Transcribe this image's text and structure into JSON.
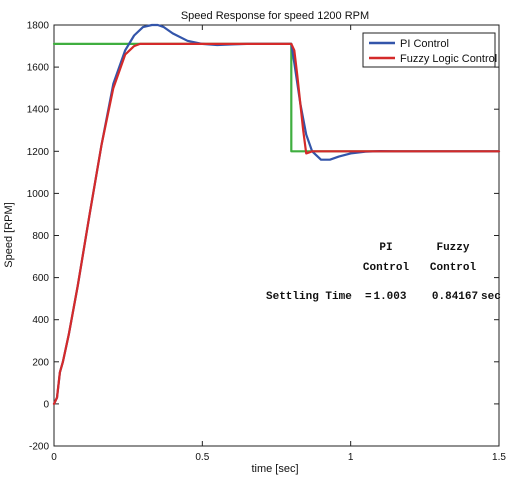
{
  "chart_data": {
    "type": "line",
    "title": "Speed Response for speed 1200 RPM",
    "xlabel": "time [sec]",
    "ylabel": "Speed [RPM]",
    "xlim": [
      0,
      1.5
    ],
    "ylim": [
      -200,
      1800
    ],
    "x_ticks": [
      0,
      0.5,
      1,
      1.5
    ],
    "x_tick_labels": [
      "0",
      "0.5",
      "1",
      "1.5"
    ],
    "y_ticks": [
      -200,
      0,
      200,
      400,
      600,
      800,
      1000,
      1200,
      1400,
      1600,
      1800
    ],
    "y_tick_labels": [
      "-200",
      "0",
      "200",
      "400",
      "600",
      "800",
      "1000",
      "1200",
      "1400",
      "1600",
      "1800"
    ],
    "grid": false,
    "legend_position": "top-right",
    "series": [
      {
        "name": "PI Control",
        "color": "#3355aa",
        "x": [
          0,
          0.01,
          0.02,
          0.03,
          0.05,
          0.08,
          0.12,
          0.16,
          0.2,
          0.24,
          0.27,
          0.3,
          0.33,
          0.35,
          0.37,
          0.4,
          0.45,
          0.5,
          0.55,
          0.6,
          0.65,
          0.7,
          0.75,
          0.8,
          0.81,
          0.83,
          0.85,
          0.87,
          0.9,
          0.93,
          0.96,
          1.0,
          1.05,
          1.1,
          1.15,
          1.2,
          1.3,
          1.4,
          1.5
        ],
        "y": [
          0,
          30,
          150,
          200,
          330,
          560,
          900,
          1230,
          1520,
          1680,
          1750,
          1790,
          1800,
          1800,
          1790,
          1760,
          1725,
          1710,
          1705,
          1708,
          1710,
          1710,
          1710,
          1710,
          1620,
          1430,
          1280,
          1200,
          1160,
          1160,
          1175,
          1190,
          1198,
          1201,
          1200,
          1200,
          1200,
          1200,
          1200
        ]
      },
      {
        "name": "Fuzzy Logic Control",
        "color": "#d42a2a",
        "x": [
          0,
          0.01,
          0.02,
          0.03,
          0.05,
          0.08,
          0.12,
          0.16,
          0.2,
          0.24,
          0.27,
          0.29,
          0.31,
          0.35,
          0.4,
          0.5,
          0.6,
          0.7,
          0.8,
          0.81,
          0.82,
          0.84,
          0.85,
          0.86,
          0.87,
          0.9,
          1.0,
          1.2,
          1.5
        ],
        "y": [
          0,
          30,
          150,
          200,
          330,
          560,
          900,
          1230,
          1500,
          1660,
          1700,
          1710,
          1710,
          1710,
          1710,
          1710,
          1710,
          1710,
          1710,
          1680,
          1560,
          1300,
          1190,
          1195,
          1200,
          1200,
          1200,
          1200,
          1200
        ]
      },
      {
        "color": "#3fae3f",
        "x": [
          0,
          0.8,
          0.8,
          1.5
        ],
        "y": [
          1710,
          1710,
          1200,
          1200
        ]
      }
    ],
    "annotations": {
      "col1_line1": "PI",
      "col1_line2": "Control",
      "col2_line1": "Fuzzy",
      "col2_line2": "Control",
      "row_label": "Settling Time  =",
      "value_pi": "1.003",
      "value_fuzzy": "0.84167",
      "unit": "sec"
    }
  }
}
